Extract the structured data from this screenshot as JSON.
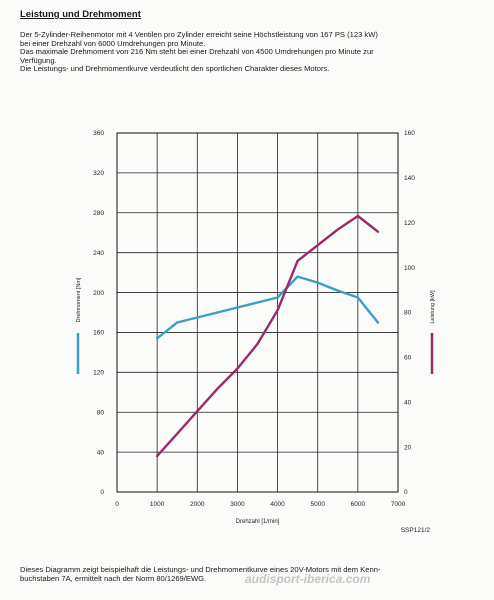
{
  "heading": "Leistung und Drehmoment",
  "intro": [
    "Der 5-Zylinder-Reihenmotor mit 4 Ventilen pro Zylinder erreicht seine Höchstleistung von 167 PS (123 kW)",
    "bei einer Drehzahl von 6000 Umdrehungen pro Minute.",
    "Das maximale Drehmoment von 216 Nm steht bei einer Drehzahl von 4500 Umdrehungen pro Minute zur",
    "Verfügung.",
    "Die Leistungs- und Drehmomentkurve verdeutlicht den sportlichen Charakter dieses Motors."
  ],
  "footer": [
    "Dieses Diagramm zeigt beispielhaft die Leistungs- und Drehmomentkurve eines 20V-Motors mit dem Kenn-",
    "buchstaben 7A, ermittelt nach der Norm 80/1269/EWG."
  ],
  "watermark": "audisport-iberica.com",
  "chart_data": {
    "type": "line",
    "xlabel": "Drehzahl [1/min]",
    "xlim": [
      0,
      7000
    ],
    "x_ticks": [
      0,
      1000,
      2000,
      3000,
      4000,
      5000,
      6000,
      7000
    ],
    "y_left": {
      "label": "Drehmoment [Nm]",
      "lim": [
        0,
        360
      ],
      "ticks": [
        0,
        40,
        80,
        120,
        160,
        200,
        240,
        280,
        320,
        360
      ]
    },
    "y_right": {
      "label": "Leistung [kW]",
      "lim": [
        0,
        160
      ],
      "ticks": [
        0,
        20,
        40,
        60,
        80,
        100,
        120,
        140,
        160
      ]
    },
    "grid": true,
    "figure_id": "SSP121/2",
    "series": [
      {
        "name": "Drehmoment [Nm]",
        "axis": "left",
        "color": "#3aa0c8",
        "x": [
          1000,
          1500,
          2000,
          2500,
          3000,
          3500,
          4000,
          4500,
          5000,
          5500,
          6000,
          6500
        ],
        "values": [
          154,
          170,
          175,
          180,
          185,
          190,
          195,
          216,
          210,
          202,
          195,
          170
        ]
      },
      {
        "name": "Leistung [kW]",
        "axis": "right",
        "color": "#9b2a6a",
        "x": [
          1000,
          1500,
          2000,
          2500,
          3000,
          3500,
          4000,
          4500,
          5000,
          5500,
          6000,
          6500
        ],
        "values": [
          16,
          26,
          36,
          46,
          55,
          66,
          81,
          103,
          110,
          117,
          123,
          116
        ]
      }
    ]
  }
}
